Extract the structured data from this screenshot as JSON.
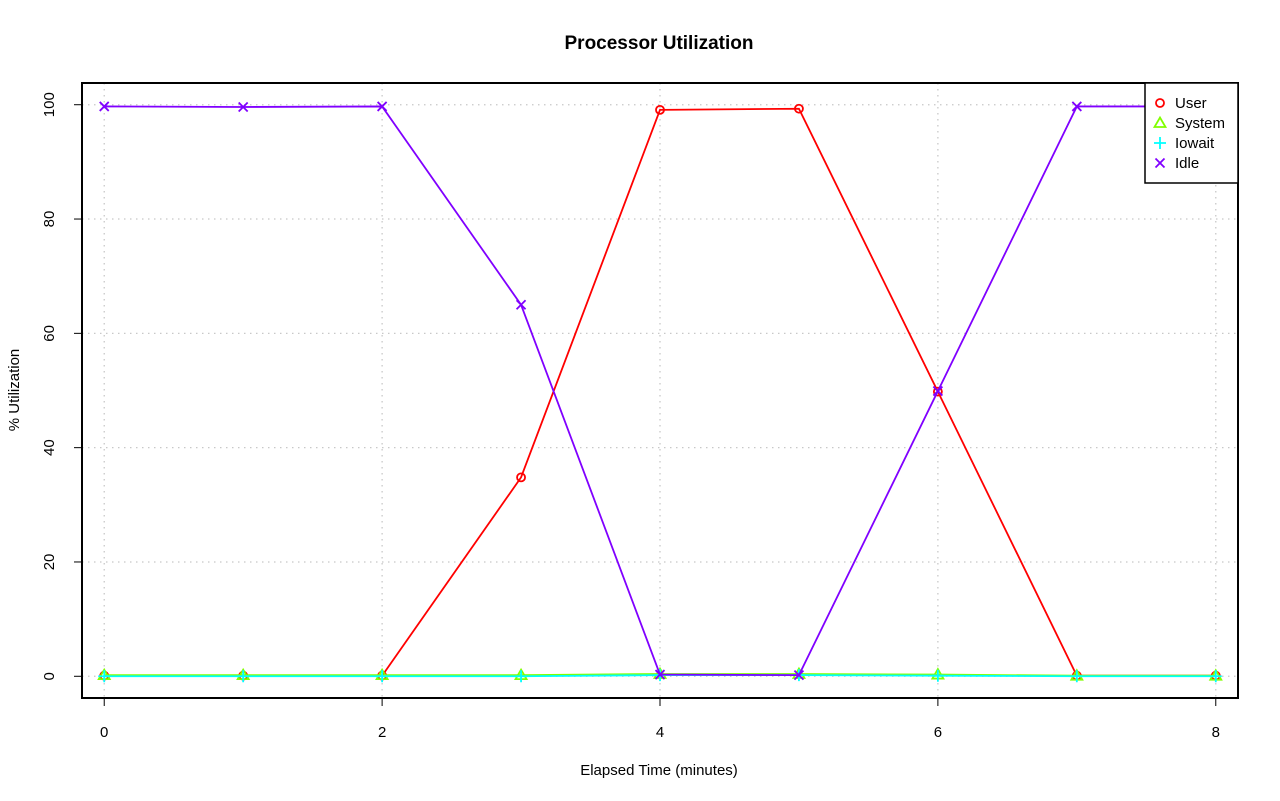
{
  "chart_data": {
    "type": "line",
    "title": "Processor Utilization",
    "xlabel": "Elapsed Time (minutes)",
    "ylabel": "% Utilization",
    "x": [
      0,
      1,
      2,
      3,
      4,
      5,
      6,
      7,
      8
    ],
    "xticks": [
      0,
      2,
      4,
      6,
      8
    ],
    "yticks": [
      0,
      20,
      40,
      60,
      80,
      100
    ],
    "xlim": [
      -0.16,
      8.16
    ],
    "ylim": [
      -3.8,
      103.8
    ],
    "grid": true,
    "legend_position": "top-right",
    "series": [
      {
        "name": "User",
        "color": "#ff0000",
        "marker": "circle",
        "values": [
          0.1,
          0.1,
          0.1,
          34.8,
          99.1,
          99.3,
          49.8,
          0.1,
          0.1
        ]
      },
      {
        "name": "System",
        "color": "#80ff00",
        "marker": "triangle",
        "values": [
          0.2,
          0.2,
          0.2,
          0.2,
          0.4,
          0.4,
          0.3,
          0.1,
          0.1
        ]
      },
      {
        "name": "Iowait",
        "color": "#00ffff",
        "marker": "plus",
        "values": [
          0.0,
          0.0,
          0.0,
          0.0,
          0.2,
          0.2,
          0.1,
          0.0,
          0.0
        ]
      },
      {
        "name": "Idle",
        "color": "#8000ff",
        "marker": "cross",
        "values": [
          99.7,
          99.6,
          99.7,
          65.0,
          0.3,
          0.2,
          49.9,
          99.7,
          99.7
        ]
      }
    ]
  }
}
